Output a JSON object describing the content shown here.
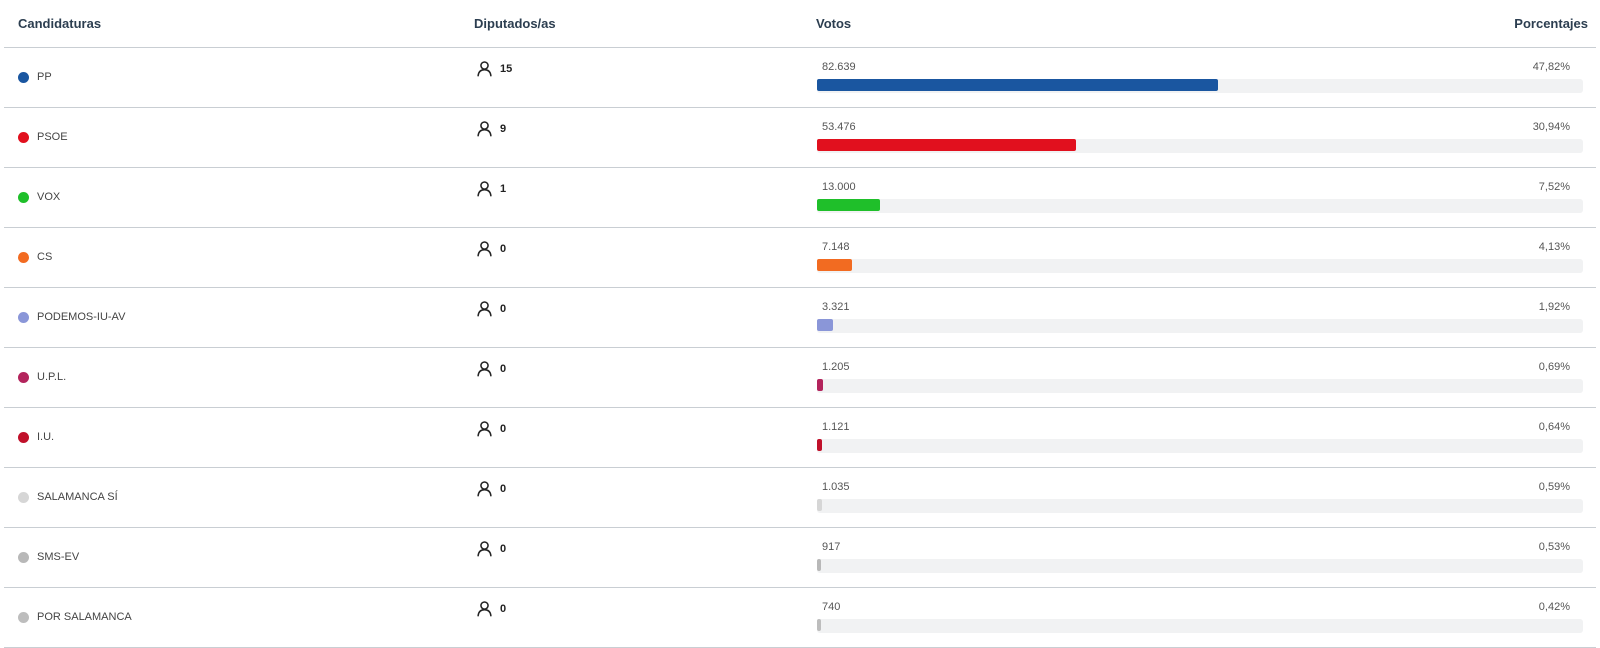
{
  "header": {
    "candidaturas": "Candidaturas",
    "diputados": "Diputados/as",
    "votos": "Votos",
    "porcentajes": "Porcentajes"
  },
  "max_votes": 158000,
  "rows": [
    {
      "party": "PP",
      "color": "#1a56a0",
      "seats": "15",
      "votes": "82.639",
      "votes_value": 82639,
      "pct": "47,82%"
    },
    {
      "party": "PSOE",
      "color": "#e1101e",
      "seats": "9",
      "votes": "53.476",
      "votes_value": 53476,
      "pct": "30,94%"
    },
    {
      "party": "VOX",
      "color": "#1fbf2a",
      "seats": "1",
      "votes": "13.000",
      "votes_value": 13000,
      "pct": "7,52%"
    },
    {
      "party": "CS",
      "color": "#f26b21",
      "seats": "0",
      "votes": "7.148",
      "votes_value": 7148,
      "pct": "4,13%"
    },
    {
      "party": "PODEMOS-IU-AV",
      "color": "#8a96d8",
      "seats": "0",
      "votes": "3.321",
      "votes_value": 3321,
      "pct": "1,92%"
    },
    {
      "party": "U.P.L.",
      "color": "#b3245c",
      "seats": "0",
      "votes": "1.205",
      "votes_value": 1205,
      "pct": "0,69%"
    },
    {
      "party": "I.U.",
      "color": "#c0102a",
      "seats": "0",
      "votes": "1.121",
      "votes_value": 1121,
      "pct": "0,64%"
    },
    {
      "party": "SALAMANCA SÍ",
      "color": "#d6d6d6",
      "seats": "0",
      "votes": "1.035",
      "votes_value": 1035,
      "pct": "0,59%"
    },
    {
      "party": "SMS-EV",
      "color": "#b8b8b8",
      "seats": "0",
      "votes": "917",
      "votes_value": 917,
      "pct": "0,53%"
    },
    {
      "party": "POR SALAMANCA",
      "color": "#bdbdbd",
      "seats": "0",
      "votes": "740",
      "votes_value": 740,
      "pct": "0,42%"
    }
  ]
}
